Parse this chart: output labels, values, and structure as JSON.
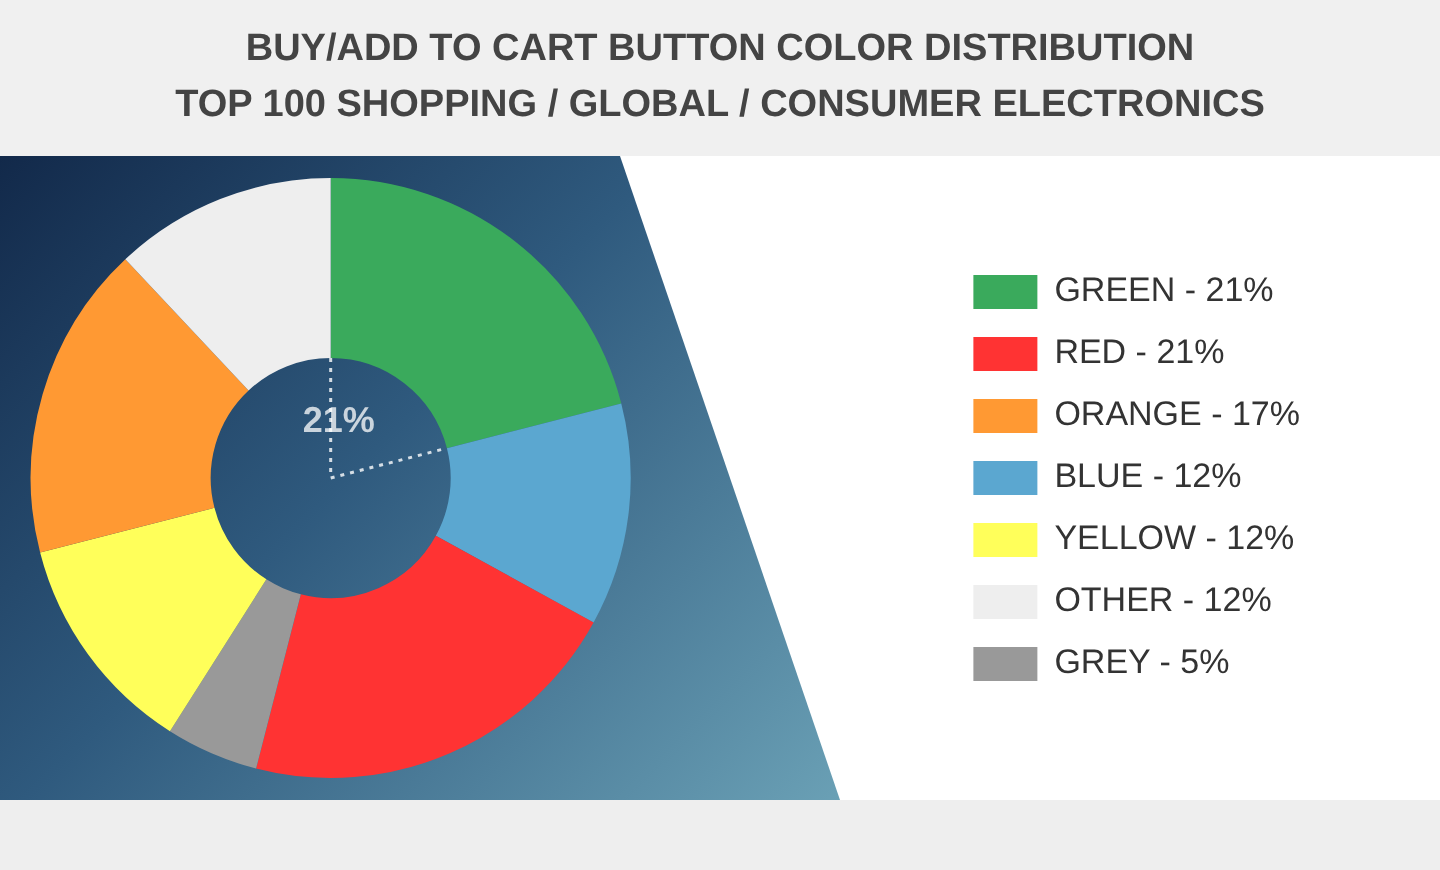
{
  "chart_data": {
    "type": "donut",
    "title": "BUY/ADD TO CART BUTTON COLOR DISTRIBUTION\nTOP 100 SHOPPING / GLOBAL / CONSUMER ELECTRONICS",
    "categories": [
      "GREEN - 21%",
      "BLUE - 12%",
      "RED - 21%",
      "GREY - 5%",
      "YELLOW - 12%",
      "ORANGE - 17%",
      "OTHER - 12%"
    ],
    "values": [
      21,
      12,
      21,
      5,
      12,
      17,
      12
    ],
    "colors": [
      "#3aaa5c",
      "#5ba7d0",
      "#ff3333",
      "#999999",
      "#ffff5a",
      "#ff9933",
      "#eeeeee"
    ],
    "legend": "right",
    "annotations": [
      "21%"
    ]
  }
}
